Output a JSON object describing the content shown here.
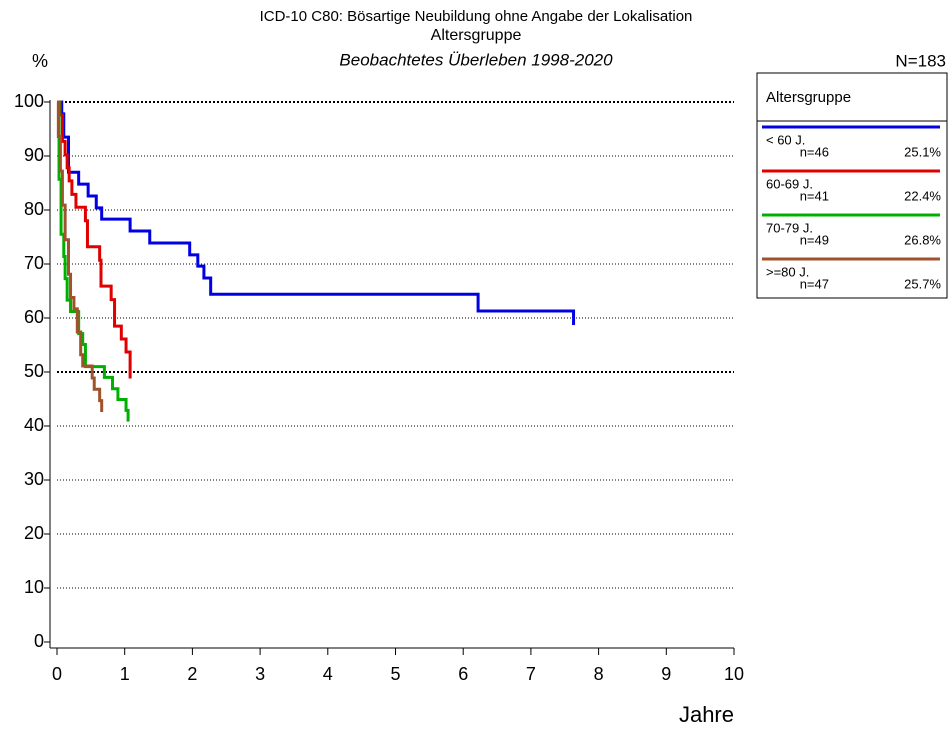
{
  "chart_data": {
    "type": "step",
    "title": "ICD-10 C80: Bösartige Neubildung ohne Angabe der Lokalisation",
    "subtitle": "Altersgruppe",
    "subtitle2": "Beobachtetes Überleben 1998-2020",
    "y_label": "%",
    "x_label": "Jahre",
    "total": "N=183",
    "legend_title": "Altersgruppe",
    "xlim": [
      0,
      10
    ],
    "xticks": [
      0,
      1,
      2,
      3,
      4,
      5,
      6,
      7,
      8,
      9,
      10
    ],
    "ylim": [
      0,
      100
    ],
    "yticks": [
      0,
      10,
      20,
      30,
      40,
      50,
      60,
      70,
      80,
      90,
      100
    ],
    "grid": true,
    "major_grid": [
      50,
      100
    ],
    "series": [
      {
        "name": "< 60 J.",
        "n": "n=46",
        "share": "25.1%",
        "color": "#0000e0",
        "x": [
          0,
          0.07,
          0.1,
          0.17,
          0.32,
          0.46,
          0.58,
          0.66,
          1.08,
          1.37,
          1.96,
          2.08,
          2.17,
          2.27,
          6.22,
          7.63
        ],
        "values": [
          100,
          97.8,
          93.5,
          87,
          84.8,
          82.6,
          80.4,
          78.3,
          76.1,
          73.9,
          71.7,
          69.6,
          67.4,
          64.4,
          61.3,
          58.7
        ]
      },
      {
        "name": "60-69 J.",
        "n": "n=41",
        "share": "22.4%",
        "color": "#e00000",
        "x": [
          0,
          0.05,
          0.08,
          0.12,
          0.15,
          0.18,
          0.22,
          0.28,
          0.42,
          0.45,
          0.63,
          0.65,
          0.8,
          0.85,
          0.95,
          1.02,
          1.08
        ],
        "values": [
          100,
          97.6,
          92.7,
          90.2,
          87.8,
          85.4,
          82.9,
          80.5,
          78,
          73.2,
          70.7,
          65.9,
          63.4,
          58.5,
          56.1,
          53.7,
          48.8
        ]
      },
      {
        "name": "70-79 J.",
        "n": "n=49",
        "share": "26.8%",
        "color": "#00b000",
        "x": [
          0,
          0.03,
          0.06,
          0.1,
          0.12,
          0.15,
          0.2,
          0.32,
          0.38,
          0.42,
          0.7,
          0.82,
          0.9,
          1.02,
          1.05
        ],
        "values": [
          100,
          85.7,
          75.5,
          71.4,
          67.3,
          63.3,
          61.2,
          57.1,
          55.1,
          51,
          49,
          46.9,
          44.9,
          42.9,
          40.8
        ]
      },
      {
        "name": ">=80 J.",
        "n": "n=47",
        "share": "25.7%",
        "color": "#a0522d",
        "x": [
          0,
          0.02,
          0.05,
          0.08,
          0.12,
          0.17,
          0.2,
          0.25,
          0.3,
          0.35,
          0.38,
          0.52,
          0.55,
          0.63,
          0.66
        ],
        "values": [
          100,
          93.6,
          87.2,
          80.9,
          74.5,
          68.1,
          63.8,
          61.7,
          57.4,
          53.2,
          51.1,
          48.9,
          46.8,
          44.7,
          42.6
        ]
      }
    ]
  }
}
